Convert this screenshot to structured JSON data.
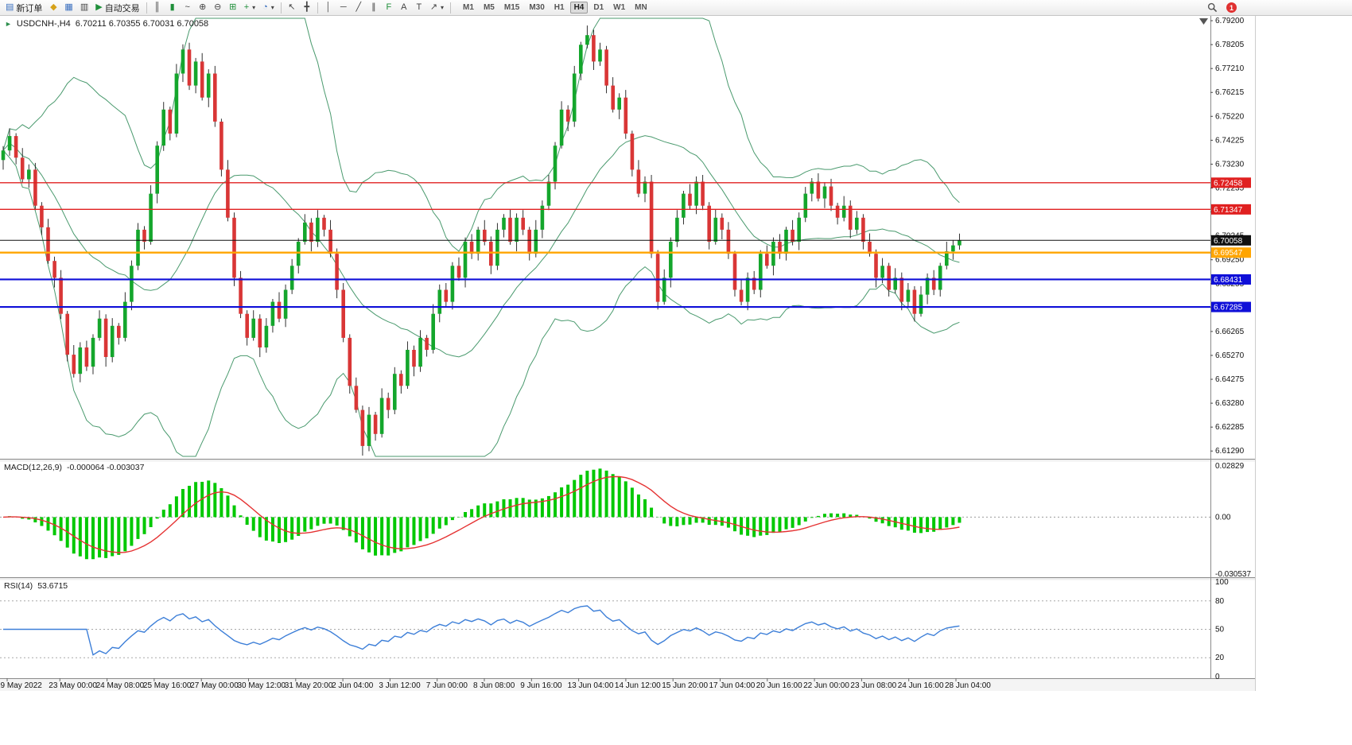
{
  "toolbar": {
    "new_order_label": "新订单",
    "autotrading_label": "自动交易",
    "timeframes": [
      "M1",
      "M5",
      "M15",
      "M30",
      "H1",
      "H4",
      "D1",
      "W1",
      "MN"
    ],
    "active_timeframe": "H4",
    "notification_count": "1"
  },
  "icons": {
    "new_order": "▤",
    "profiles": "◆",
    "market_watch": "▦",
    "data_window": "▥",
    "autotrading_play": "▶",
    "bar_chart": "║",
    "candlestick": "▮",
    "line_chart": "~",
    "zoom_in": "⊕",
    "zoom_out": "⊖",
    "tile_windows": "⊞",
    "indicators": "+",
    "periods": "◔",
    "cursor": "↖",
    "crosshair": "╋",
    "vline": "│",
    "hline": "─",
    "trendline": "╱",
    "channel": "∥",
    "fibonacci": "F",
    "text": "A",
    "label": "T",
    "arrows": "↗",
    "caret": "▾",
    "symbol_marker": "►"
  },
  "chart": {
    "symbol_title": "USDCNH-,H4",
    "ohlc_text": "6.70211 6.70355 6.70031 6.70058"
  },
  "chart_data": {
    "type": "candlestick",
    "symbol": "USDCNH-",
    "timeframe": "H4",
    "current": {
      "open": 6.70211,
      "high": 6.70355,
      "low": 6.70031,
      "close": 6.70058
    },
    "first_open": 6.734,
    "closes": [
      6.738,
      6.744,
      6.735,
      6.726,
      6.73,
      6.715,
      6.706,
      6.692,
      6.685,
      6.67,
      6.653,
      6.645,
      6.656,
      6.648,
      6.66,
      6.668,
      6.652,
      6.665,
      6.66,
      6.675,
      6.69,
      6.705,
      6.7,
      6.72,
      6.74,
      6.755,
      6.745,
      6.77,
      6.78,
      6.765,
      6.775,
      6.76,
      6.77,
      6.75,
      6.73,
      6.71,
      6.685,
      6.67,
      6.66,
      6.668,
      6.656,
      6.665,
      6.675,
      6.668,
      6.68,
      6.69,
      6.7,
      6.708,
      6.7,
      6.71,
      6.705,
      6.695,
      6.68,
      6.66,
      6.64,
      6.63,
      6.615,
      6.628,
      6.62,
      6.635,
      6.63,
      6.645,
      6.64,
      6.655,
      6.648,
      6.66,
      6.655,
      6.67,
      6.68,
      6.675,
      6.69,
      6.685,
      6.7,
      6.695,
      6.705,
      6.7,
      6.69,
      6.705,
      6.71,
      6.7,
      6.71,
      6.705,
      6.695,
      6.705,
      6.715,
      6.725,
      6.74,
      6.755,
      6.75,
      6.77,
      6.782,
      6.786,
      6.775,
      6.78,
      6.765,
      6.755,
      6.76,
      6.745,
      6.73,
      6.72,
      6.725,
      6.695,
      6.675,
      6.685,
      6.7,
      6.71,
      6.72,
      6.715,
      6.725,
      6.715,
      6.7,
      6.71,
      6.705,
      6.695,
      6.68,
      6.675,
      6.685,
      6.68,
      6.695,
      6.69,
      6.7,
      6.695,
      6.705,
      6.7,
      6.71,
      6.72,
      6.725,
      6.718,
      6.723,
      6.715,
      6.71,
      6.715,
      6.705,
      6.71,
      6.7,
      6.695,
      6.685,
      6.69,
      6.68,
      6.685,
      6.675,
      6.68,
      6.67,
      6.678,
      6.685,
      6.68,
      6.69,
      6.696,
      6.6985,
      6.70058
    ],
    "wick_pattern": [
      0.0018,
      0.0032,
      0.0012,
      0.004,
      0.0022,
      0.0028,
      0.0015,
      0.0035
    ],
    "colors": {
      "up": "#14a62c",
      "down": "#d93636",
      "wick": "#1a1a1a"
    },
    "bollinger": {
      "period": 20,
      "deviations": 2,
      "color": "#4a9a6e"
    },
    "price_axis": {
      "labels": [
        "6.79200",
        "6.78205",
        "6.77210",
        "6.76215",
        "6.75220",
        "6.74225",
        "6.73230",
        "6.72235",
        "6.71240",
        "6.70245",
        "6.69250",
        "6.68255",
        "6.67260",
        "6.66265",
        "6.65270",
        "6.64275",
        "6.63280",
        "6.62285",
        "6.61290"
      ]
    },
    "horizontal_lines": [
      {
        "price": 6.72458,
        "color": "#e02020",
        "width": 1.4,
        "tag": "6.72458"
      },
      {
        "price": 6.71347,
        "color": "#e02020",
        "width": 1.4,
        "tag": "6.71347"
      },
      {
        "price": 6.70058,
        "color": "#101010",
        "width": 1.0,
        "tag": "6.70058"
      },
      {
        "price": 6.69547,
        "color": "#ffa500",
        "width": 2.4,
        "tag": "6.69547"
      },
      {
        "price": 6.68431,
        "color": "#0f0fd8",
        "width": 2.2,
        "tag": "6.68431"
      },
      {
        "price": 6.67285,
        "color": "#0f0fd8",
        "width": 2.2,
        "tag": "6.67285"
      }
    ],
    "macd": {
      "label": "MACD(12,26,9)",
      "values_text": "-0.000064 -0.003037",
      "fast": 12,
      "slow": 26,
      "signal": 9,
      "axis_max": 0.02829,
      "axis_min": -0.030537,
      "axis_labels": [
        "0.02829",
        "0.00",
        "-0.030537"
      ],
      "histogram_color": "#00c800",
      "signal_color": "#e53232"
    },
    "rsi": {
      "label": "RSI(14)",
      "value_text": "53.6715",
      "period": 14,
      "levels": [
        80,
        50,
        20
      ],
      "axis_labels": [
        "100",
        "80",
        "50",
        "20",
        "0"
      ],
      "line_color": "#3d7fd8"
    },
    "time_axis": [
      "19 May 2022",
      "23 May 00:00",
      "24 May 08:00",
      "25 May 16:00",
      "27 May 00:00",
      "30 May 12:00",
      "31 May 20:00",
      "2 Jun 04:00",
      "3 Jun 12:00",
      "7 Jun 00:00",
      "8 Jun 08:00",
      "9 Jun 16:00",
      "13 Jun 04:00",
      "14 Jun 12:00",
      "15 Jun 20:00",
      "17 Jun 04:00",
      "20 Jun 16:00",
      "22 Jun 00:00",
      "23 Jun 08:00",
      "24 Jun 16:00",
      "28 Jun 04:00"
    ]
  }
}
